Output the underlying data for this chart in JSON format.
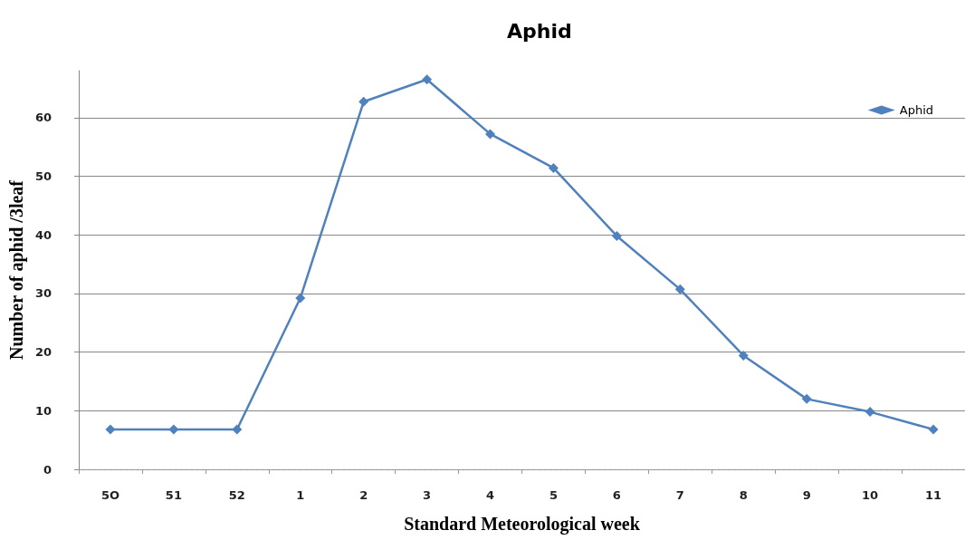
{
  "chart_data": {
    "type": "line",
    "title": "Aphid",
    "xlabel": "Standard Meteorological week",
    "ylabel": "Number of aphid /3leaf",
    "categories": [
      "5O",
      "51",
      "52",
      "1",
      "2",
      "3",
      "4",
      "5",
      "6",
      "7",
      "8",
      "9",
      "10",
      "11"
    ],
    "series": [
      {
        "name": "Aphid",
        "color": "#4f81bd",
        "values": [
          6.8,
          6.8,
          6.8,
          29.2,
          62.7,
          66.5,
          57.2,
          51.4,
          39.8,
          30.7,
          19.4,
          12.0,
          9.8,
          6.8
        ]
      }
    ],
    "ylim": [
      0,
      68
    ],
    "yticks": [
      0,
      10,
      20,
      30,
      40,
      50,
      60
    ],
    "grid": "y",
    "legend": "top right",
    "marker": "diamond",
    "line_style": "solid"
  }
}
